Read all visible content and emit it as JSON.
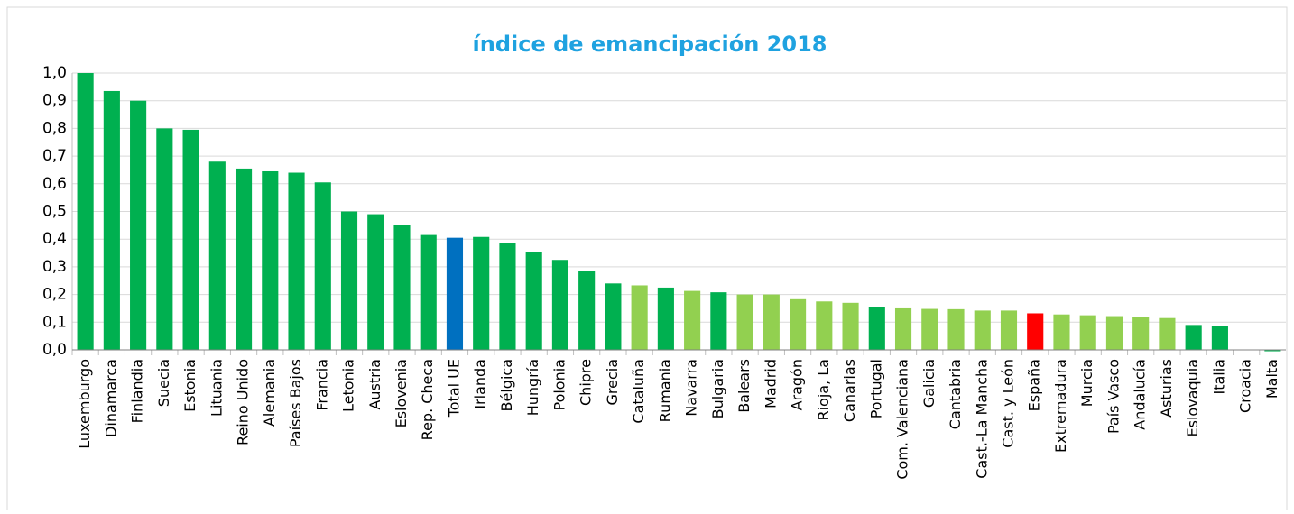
{
  "chart_data": {
    "type": "bar",
    "title": "índice de emancipación 2018",
    "categories": [
      "Luxemburgo",
      "Dinamarca",
      "Finlandia",
      "Suecia",
      "Estonia",
      "Lituania",
      "Reino Unido",
      "Alemania",
      "Países Bajos",
      "Francia",
      "Letonia",
      "Austria",
      "Eslovenia",
      "Rep. Checa",
      "Total UE",
      "Irlanda",
      "Bélgica",
      "Hungría",
      "Polonia",
      "Chipre",
      "Grecia",
      "Cataluña",
      "Rumania",
      "Navarra",
      "Bulgaria",
      "Balears",
      "Madrid",
      "Aragón",
      "Rioja, La",
      "Canarias",
      "Portugal",
      "Com. Valenciana",
      "Galicia",
      "Cantabria",
      "Cast.-La Mancha",
      "Cast. y León",
      "España",
      "Extremadura",
      "Murcia",
      "País Vasco",
      "Andalucía",
      "Asturias",
      "Eslovaquia",
      "Italia",
      "Croacia",
      "Malta"
    ],
    "values": [
      1.0,
      0.935,
      0.9,
      0.8,
      0.795,
      0.68,
      0.655,
      0.645,
      0.64,
      0.605,
      0.5,
      0.49,
      0.45,
      0.415,
      0.405,
      0.408,
      0.385,
      0.355,
      0.325,
      0.285,
      0.24,
      0.233,
      0.225,
      0.213,
      0.208,
      0.2,
      0.2,
      0.183,
      0.175,
      0.17,
      0.155,
      0.15,
      0.148,
      0.147,
      0.142,
      0.142,
      0.132,
      0.128,
      0.125,
      0.122,
      0.118,
      0.115,
      0.09,
      0.085,
      0,
      -0.005
    ],
    "colors": [
      "#00b050",
      "#00b050",
      "#00b050",
      "#00b050",
      "#00b050",
      "#00b050",
      "#00b050",
      "#00b050",
      "#00b050",
      "#00b050",
      "#00b050",
      "#00b050",
      "#00b050",
      "#00b050",
      "#0070c0",
      "#00b050",
      "#00b050",
      "#00b050",
      "#00b050",
      "#00b050",
      "#00b050",
      "#92d050",
      "#00b050",
      "#92d050",
      "#00b050",
      "#92d050",
      "#92d050",
      "#92d050",
      "#92d050",
      "#92d050",
      "#00b050",
      "#92d050",
      "#92d050",
      "#92d050",
      "#92d050",
      "#92d050",
      "#ff0000",
      "#92d050",
      "#92d050",
      "#92d050",
      "#92d050",
      "#92d050",
      "#00b050",
      "#00b050",
      "#00b050",
      "#00b050"
    ],
    "ylim": [
      0,
      1
    ],
    "yticks": [
      {
        "value": 0,
        "label": "0,0"
      },
      {
        "value": 0.1,
        "label": "0,1"
      },
      {
        "value": 0.2,
        "label": "0,2"
      },
      {
        "value": 0.3,
        "label": "0,3"
      },
      {
        "value": 0.4,
        "label": "0,4"
      },
      {
        "value": 0.5,
        "label": "0,5"
      },
      {
        "value": 0.6,
        "label": "0,6"
      },
      {
        "value": 0.7,
        "label": "0,7"
      },
      {
        "value": 0.8,
        "label": "0,8"
      },
      {
        "value": 0.9,
        "label": "0,9"
      },
      {
        "value": 1,
        "label": "1,0"
      }
    ],
    "grid": true
  }
}
